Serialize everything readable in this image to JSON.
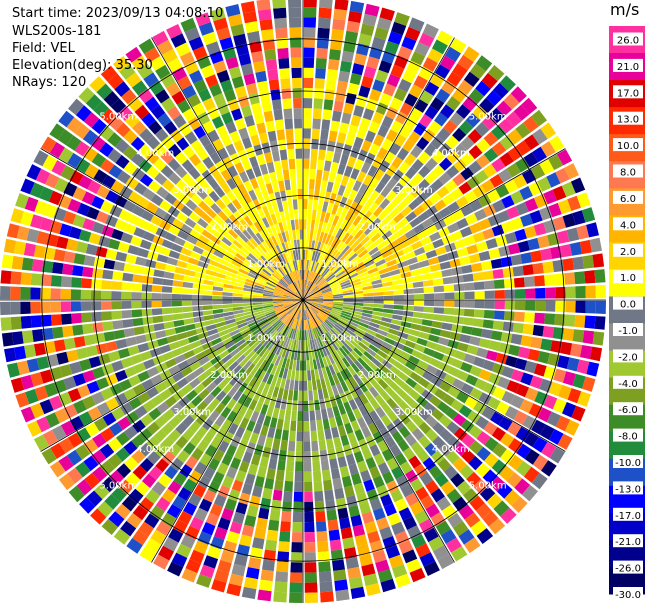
{
  "info": {
    "start_time": "Start time: 2023/09/13 04:08:10",
    "site": "WLS200s-181",
    "field": "Field: VEL",
    "elevation": "Elevation(deg): 35.30",
    "nrays": "NRays: 120"
  },
  "chart_data": {
    "type": "heatmap",
    "projection": "polar-ppi",
    "field": "VEL",
    "n_rays": 120,
    "range_ring_labels": [
      "1.00km",
      "2.00km",
      "3.00km",
      "4.00km",
      "5.00km"
    ],
    "range_rings_km": [
      1,
      2,
      3,
      4,
      5
    ],
    "max_range_km": 5.8,
    "colorbar": {
      "title": "m/s",
      "tick_labels": [
        "26.0",
        "21.0",
        "17.0",
        "13.0",
        "10.0",
        "8.0",
        "6.0",
        "4.0",
        "2.0",
        "1.0",
        "0.0",
        "-1.0",
        "-2.0",
        "-4.0",
        "-6.0",
        "-8.0",
        "-10.0",
        "-13.0",
        "-17.0",
        "-21.0",
        "-26.0",
        "-30.0"
      ],
      "colors": [
        "#ff2fa0",
        "#e8009a",
        "#e00000",
        "#ff2a00",
        "#ff5a1a",
        "#ff7850",
        "#ff9a30",
        "#ffb400",
        "#ffd400",
        "#ffff00",
        "#707888",
        "#909090",
        "#a0c830",
        "#7ea020",
        "#3c8c28",
        "#208c3c",
        "#1e50c8",
        "#0000ff",
        "#0000c8",
        "#00008c",
        "#000064"
      ]
    },
    "pattern": {
      "north_half": "positive (yellow, ~1-6 m/s) within ~3.5 km",
      "south_half": "negative (green, ~-1 to -6 m/s) within ~3.5 km",
      "beyond_4km": "noisy multicolor"
    }
  }
}
